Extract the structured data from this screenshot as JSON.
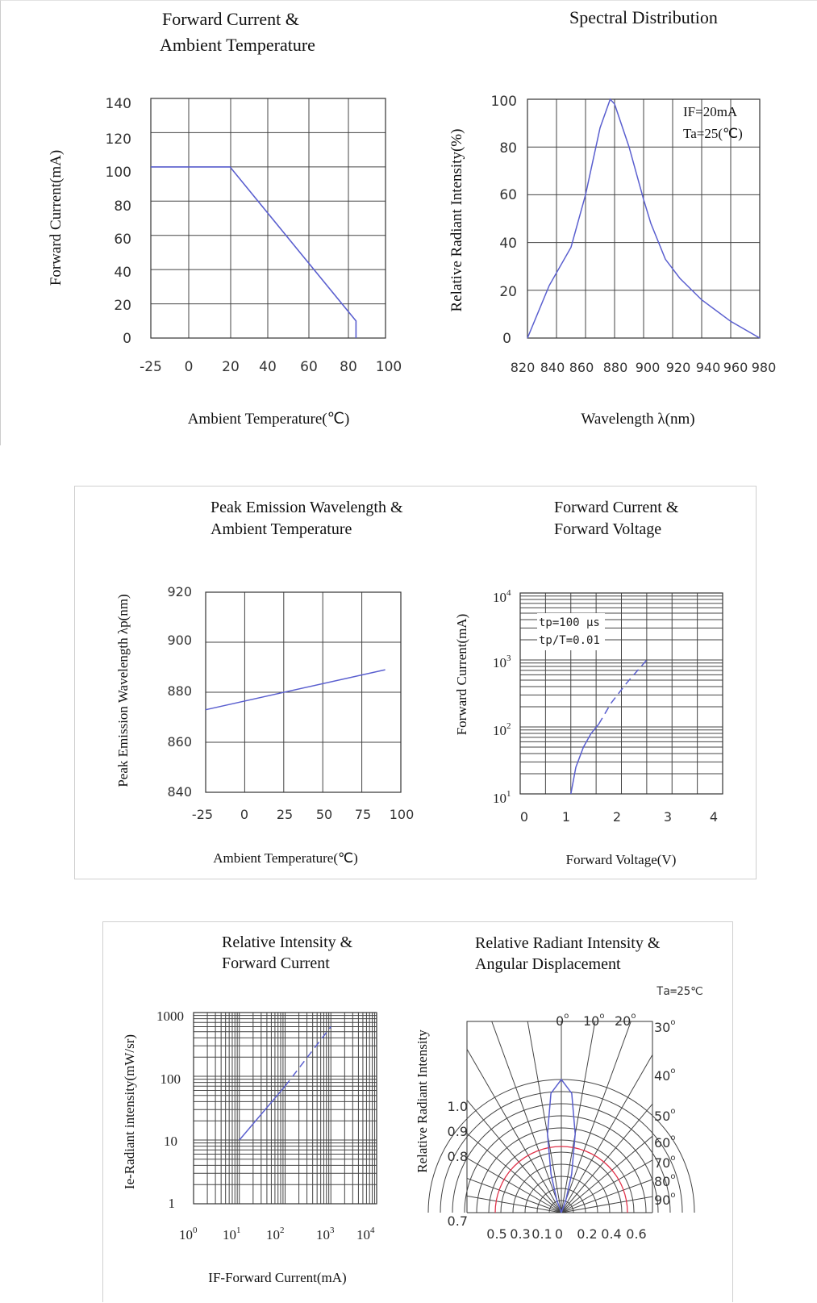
{
  "colors": {
    "curve": "#5a5fcf",
    "highlight": "#e0324a",
    "grid": "#444444"
  },
  "chart_data": [
    {
      "id": "c1",
      "type": "line",
      "title_lines": [
        "Forward Current  &",
        "Ambient Temperature"
      ],
      "xlabel": "Ambient Temperature(℃)",
      "ylabel": "Forward Current(mA)",
      "x_ticks": [
        "-25",
        "0",
        "20",
        "40",
        "60",
        "80",
        "100"
      ],
      "y_ticks": [
        "0",
        "20",
        "40",
        "60",
        "80",
        "100",
        "120",
        "140"
      ],
      "xlim": [
        -25,
        100
      ],
      "ylim": [
        0,
        140
      ],
      "grid": true,
      "series": [
        {
          "x": [
            -25,
            21,
            85,
            85
          ],
          "y": [
            100,
            100,
            10,
            0
          ]
        }
      ]
    },
    {
      "id": "c2",
      "type": "line",
      "title_lines": [
        "Spectral Distribution"
      ],
      "xlabel": "Wavelength λ(nm)",
      "ylabel": "Relative Radiant Intensity(%)",
      "x_ticks": [
        "820",
        "840",
        "860",
        "880",
        "900",
        "920",
        "940",
        "960",
        "980"
      ],
      "y_ticks": [
        "0",
        "20",
        "40",
        "60",
        "80",
        "100"
      ],
      "xlim": [
        820,
        980
      ],
      "ylim": [
        0,
        100
      ],
      "grid": true,
      "annotations": [
        "IF=20mA",
        "Ta=25(℃)"
      ],
      "series": [
        {
          "x": [
            820,
            835,
            850,
            860,
            870,
            877,
            880,
            890,
            900,
            905,
            915,
            925,
            940,
            960,
            980
          ],
          "y": [
            0,
            22,
            38,
            60,
            88,
            100,
            98,
            80,
            58,
            48,
            33,
            25,
            16,
            7,
            0
          ]
        }
      ]
    },
    {
      "id": "c3",
      "type": "line",
      "title_lines": [
        "Peak Emission Wavelength &",
        "Ambient Temperature"
      ],
      "xlabel": "Ambient Temperature(℃)",
      "ylabel": "Peak Emission Wavelength λp(nm)",
      "x_ticks": [
        "-25",
        "0",
        "25",
        "50",
        "75",
        "100"
      ],
      "y_ticks": [
        "840",
        "860",
        "880",
        "900",
        "920"
      ],
      "xlim": [
        -25,
        100
      ],
      "ylim": [
        840,
        920
      ],
      "grid": true,
      "series": [
        {
          "x": [
            -25,
            90
          ],
          "y": [
            873,
            889
          ]
        }
      ]
    },
    {
      "id": "c4",
      "type": "line",
      "title_lines": [
        "Forward Current  &",
        "Forward Voltage"
      ],
      "xlabel": "Forward Voltage(V)",
      "ylabel": "Forward Current(mA)",
      "x_ticks": [
        "0",
        "1",
        "2",
        "3",
        "4"
      ],
      "y_ticks": [
        {
          "base": "10",
          "exp": "1"
        },
        {
          "base": "10",
          "exp": "2"
        },
        {
          "base": "10",
          "exp": "3"
        },
        {
          "base": "10",
          "exp": "4"
        }
      ],
      "xlim": [
        0,
        4
      ],
      "ylim": [
        10,
        10000
      ],
      "y_scale": "log",
      "grid": true,
      "annotations": [
        "tp=100 μs",
        "tp/T=0.01"
      ],
      "series": [
        {
          "style": "solid",
          "x": [
            1.0,
            1.1,
            1.25,
            1.4,
            1.55
          ],
          "y": [
            10,
            25,
            50,
            80,
            110
          ]
        },
        {
          "style": "dashed",
          "x": [
            1.55,
            1.8,
            2.1,
            2.5
          ],
          "y": [
            110,
            230,
            450,
            1000
          ]
        }
      ]
    },
    {
      "id": "c5",
      "type": "line",
      "title_lines": [
        "Relative Intensity &",
        "Forward Current"
      ],
      "xlabel": "IF-Forward Current(mA)",
      "ylabel": "Ie-Radiant intensity(mW/sr)",
      "x_ticks": [
        {
          "base": "10",
          "exp": "0"
        },
        {
          "base": "10",
          "exp": "1"
        },
        {
          "base": "10",
          "exp": "2"
        },
        {
          "base": "10",
          "exp": "3"
        },
        {
          "base": "10",
          "exp": "4"
        }
      ],
      "y_ticks": [
        "1",
        "10",
        "100",
        "1000"
      ],
      "xlim": [
        1,
        10000
      ],
      "ylim": [
        1,
        1000
      ],
      "x_scale": "log",
      "y_scale": "log",
      "grid": true,
      "series": [
        {
          "style": "solid",
          "x": [
            10,
            100
          ],
          "y": [
            10,
            70
          ]
        },
        {
          "style": "dashed",
          "x": [
            100,
            1000
          ],
          "y": [
            70,
            600
          ]
        }
      ]
    },
    {
      "id": "c6",
      "type": "polar",
      "title_lines": [
        "Relative Radiant Intensity &",
        "Angular Displacement"
      ],
      "annotation": "Ta=25℃",
      "ylabel": "Relative Radiant Intensity",
      "radial_labels": [
        "1.0",
        "0.9",
        "0.8",
        "0.7"
      ],
      "bottom_labels": [
        "0.5",
        "0.3",
        "0.1",
        "0",
        "0.2",
        "0.4",
        "0.6"
      ],
      "angle_labels": [
        {
          "base": "0",
          "deg": "o"
        },
        {
          "base": "10",
          "deg": "o"
        },
        {
          "base": "20",
          "deg": "o"
        },
        {
          "base": "30",
          "deg": "o"
        },
        {
          "base": "40",
          "deg": "o"
        },
        {
          "base": "50",
          "deg": "o"
        },
        {
          "base": "60",
          "deg": "o"
        },
        {
          "base": "70",
          "deg": "o"
        },
        {
          "base": "80",
          "deg": "o"
        },
        {
          "base": "90",
          "deg": "o"
        }
      ],
      "series": [
        {
          "name": "",
          "angle_deg": [
            0,
            5,
            10,
            15,
            20,
            30
          ],
          "relative": [
            1.0,
            0.9,
            0.6,
            0.3,
            0.1,
            0.0
          ]
        }
      ]
    }
  ]
}
